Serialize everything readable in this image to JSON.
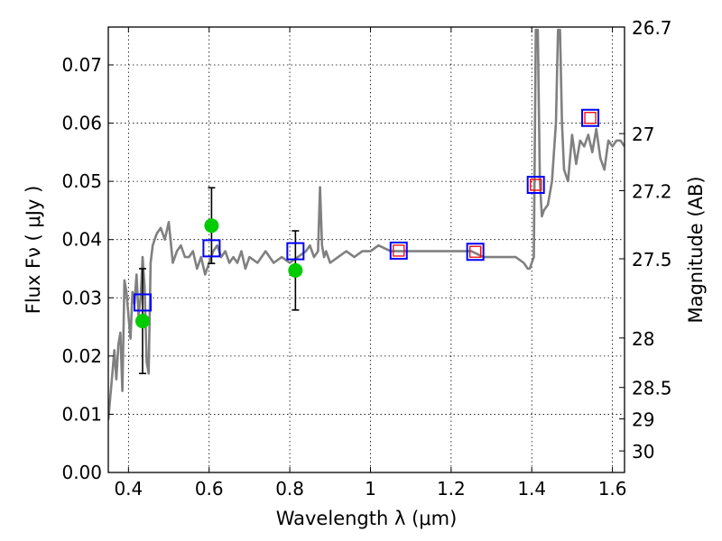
{
  "chart_data": {
    "type": "line",
    "xlabel": "Wavelength  λ (μm)",
    "ylabel": "Flux  Fν  ( μJy )",
    "ylabel_right": "Magnitude (AB)",
    "xlim": [
      0.35,
      1.63
    ],
    "ylim": [
      0.0,
      0.0765
    ],
    "x_ticks": [
      0.4,
      0.6,
      0.8,
      1.0,
      1.2,
      1.4,
      1.6
    ],
    "x_tick_labels": [
      "0.4",
      "0.6",
      "0.8",
      "1",
      "1.2",
      "1.4",
      "1.6"
    ],
    "y_ticks": [
      0.0,
      0.01,
      0.02,
      0.03,
      0.04,
      0.05,
      0.06,
      0.07
    ],
    "y_tick_labels": [
      "0.00",
      "0.01",
      "0.02",
      "0.03",
      "0.04",
      "0.05",
      "0.06",
      "0.07"
    ],
    "right_ticks": [
      {
        "label": "26.7",
        "flux": 0.0765
      },
      {
        "label": "27",
        "flux": 0.0582
      },
      {
        "label": "27.2",
        "flux": 0.0484
      },
      {
        "label": "27.5",
        "flux": 0.0367
      },
      {
        "label": "28",
        "flux": 0.0231
      },
      {
        "label": "28.5",
        "flux": 0.0146
      },
      {
        "label": "29",
        "flux": 0.0092
      },
      {
        "label": "30",
        "flux": 0.0037
      }
    ],
    "grid": true,
    "colors": {
      "spectrum": "#808080",
      "observed": "#00cc00",
      "model_broadband": "#0000ff",
      "model_inner": "#ff0000",
      "errorbar": "#000000"
    },
    "series": [
      {
        "kind": "spectrum",
        "x": [
          0.35,
          0.355,
          0.36,
          0.365,
          0.37,
          0.375,
          0.38,
          0.385,
          0.39,
          0.395,
          0.4,
          0.405,
          0.41,
          0.415,
          0.42,
          0.425,
          0.43,
          0.435,
          0.44,
          0.445,
          0.45,
          0.455,
          0.46,
          0.465,
          0.47,
          0.48,
          0.49,
          0.5,
          0.51,
          0.52,
          0.53,
          0.54,
          0.55,
          0.56,
          0.57,
          0.58,
          0.59,
          0.6,
          0.61,
          0.62,
          0.63,
          0.64,
          0.65,
          0.66,
          0.67,
          0.68,
          0.69,
          0.7,
          0.72,
          0.74,
          0.76,
          0.78,
          0.8,
          0.82,
          0.84,
          0.85,
          0.86,
          0.87,
          0.875,
          0.88,
          0.885,
          0.89,
          0.9,
          0.92,
          0.94,
          0.96,
          0.98,
          1.0,
          1.02,
          1.05,
          1.08,
          1.1,
          1.15,
          1.2,
          1.25,
          1.28,
          1.3,
          1.33,
          1.36,
          1.38,
          1.39,
          1.395,
          1.4,
          1.405,
          1.41,
          1.415,
          1.42,
          1.425,
          1.43,
          1.44,
          1.45,
          1.46,
          1.465,
          1.47,
          1.475,
          1.48,
          1.49,
          1.5,
          1.51,
          1.52,
          1.53,
          1.54,
          1.55,
          1.56,
          1.57,
          1.58,
          1.59,
          1.6,
          1.61,
          1.62,
          1.63
        ],
        "y": [
          0.009,
          0.013,
          0.017,
          0.021,
          0.016,
          0.022,
          0.024,
          0.014,
          0.033,
          0.031,
          0.027,
          0.023,
          0.031,
          0.029,
          0.034,
          0.027,
          0.03,
          0.037,
          0.032,
          0.019,
          0.017,
          0.036,
          0.039,
          0.04,
          0.041,
          0.042,
          0.04,
          0.043,
          0.036,
          0.038,
          0.039,
          0.037,
          0.037,
          0.038,
          0.035,
          0.037,
          0.034,
          0.036,
          0.038,
          0.039,
          0.037,
          0.038,
          0.036,
          0.037,
          0.036,
          0.038,
          0.035,
          0.037,
          0.036,
          0.038,
          0.036,
          0.037,
          0.036,
          0.037,
          0.038,
          0.039,
          0.037,
          0.038,
          0.049,
          0.039,
          0.037,
          0.038,
          0.036,
          0.037,
          0.038,
          0.037,
          0.038,
          0.038,
          0.039,
          0.038,
          0.038,
          0.038,
          0.038,
          0.038,
          0.038,
          0.037,
          0.037,
          0.037,
          0.037,
          0.036,
          0.035,
          0.035,
          0.036,
          0.037,
          0.076,
          0.076,
          0.05,
          0.044,
          0.045,
          0.046,
          0.05,
          0.06,
          0.076,
          0.076,
          0.06,
          0.052,
          0.05,
          0.058,
          0.053,
          0.057,
          0.056,
          0.058,
          0.055,
          0.059,
          0.054,
          0.052,
          0.057,
          0.056,
          0.057,
          0.057,
          0.056
        ]
      },
      {
        "kind": "observed",
        "points": [
          {
            "x": 0.435,
            "y": 0.026,
            "yerr": 0.009
          },
          {
            "x": 0.606,
            "y": 0.0424,
            "yerr": 0.0065
          },
          {
            "x": 0.814,
            "y": 0.0347,
            "yerr": 0.0068
          }
        ]
      },
      {
        "kind": "model_broadband",
        "points": [
          {
            "x": 0.435,
            "y": 0.0292,
            "inner": false
          },
          {
            "x": 0.606,
            "y": 0.0385,
            "inner": false
          },
          {
            "x": 0.814,
            "y": 0.038,
            "inner": false
          },
          {
            "x": 1.07,
            "y": 0.0381,
            "inner": true
          },
          {
            "x": 1.26,
            "y": 0.0379,
            "inner": true
          },
          {
            "x": 1.41,
            "y": 0.0494,
            "inner": true
          },
          {
            "x": 1.545,
            "y": 0.0609,
            "inner": true
          }
        ]
      }
    ]
  }
}
